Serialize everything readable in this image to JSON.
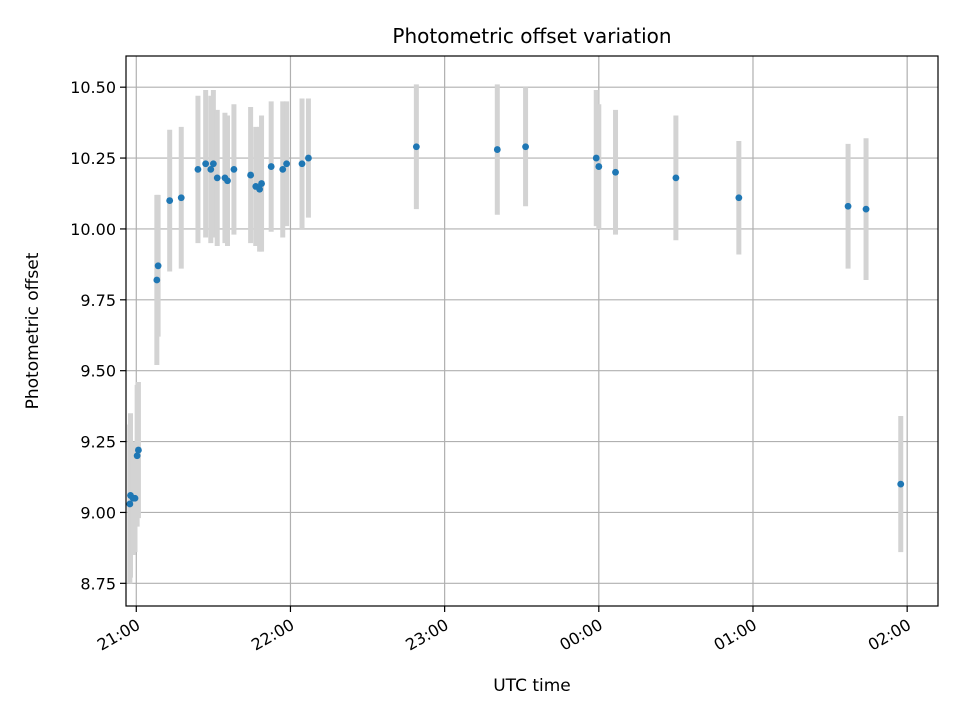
{
  "chart_data": {
    "type": "scatter",
    "title": "Photometric offset variation",
    "xlabel": "UTC time",
    "ylabel": "Photometric offset",
    "x_unit": "time",
    "xlim": [
      "20:56",
      "02:12"
    ],
    "ylim": [
      8.67,
      10.61
    ],
    "x_ticks": [
      "21:00",
      "22:00",
      "23:00",
      "00:00",
      "01:00",
      "02:00"
    ],
    "y_ticks": [
      "8.75",
      "9.00",
      "9.25",
      "9.50",
      "9.75",
      "10.00",
      "10.25",
      "10.50"
    ],
    "grid": true,
    "colors": {
      "points": "#1f77b4",
      "error_bars": "#d3d3d3",
      "grid": "#b0b0b0",
      "axes": "#000000"
    },
    "series": [
      {
        "points": [
          {
            "x": "20:57:30",
            "y": 9.03,
            "err": 0.28
          },
          {
            "x": "20:57:45",
            "y": 9.06,
            "err": 0.29
          },
          {
            "x": "20:58:45",
            "y": 9.05,
            "err": 0.2
          },
          {
            "x": "20:59:30",
            "y": 9.05,
            "err": 0.19
          },
          {
            "x": "21:00:20",
            "y": 9.2,
            "err": 0.25
          },
          {
            "x": "21:00:50",
            "y": 9.22,
            "err": 0.24
          },
          {
            "x": "21:08:00",
            "y": 9.82,
            "err": 0.3
          },
          {
            "x": "21:08:30",
            "y": 9.87,
            "err": 0.25
          },
          {
            "x": "21:13:00",
            "y": 10.1,
            "err": 0.25
          },
          {
            "x": "21:17:30",
            "y": 10.11,
            "err": 0.25
          },
          {
            "x": "21:24:00",
            "y": 10.21,
            "err": 0.26
          },
          {
            "x": "21:27:00",
            "y": 10.23,
            "err": 0.26
          },
          {
            "x": "21:29:00",
            "y": 10.21,
            "err": 0.26
          },
          {
            "x": "21:30:00",
            "y": 10.23,
            "err": 0.26
          },
          {
            "x": "21:31:30",
            "y": 10.18,
            "err": 0.24
          },
          {
            "x": "21:34:30",
            "y": 10.18,
            "err": 0.23
          },
          {
            "x": "21:35:30",
            "y": 10.17,
            "err": 0.23
          },
          {
            "x": "21:38:00",
            "y": 10.21,
            "err": 0.23
          },
          {
            "x": "21:44:30",
            "y": 10.19,
            "err": 0.24
          },
          {
            "x": "21:46:30",
            "y": 10.15,
            "err": 0.21
          },
          {
            "x": "21:48:00",
            "y": 10.14,
            "err": 0.22
          },
          {
            "x": "21:48:45",
            "y": 10.16,
            "err": 0.24
          },
          {
            "x": "21:52:30",
            "y": 10.22,
            "err": 0.23
          },
          {
            "x": "21:57:00",
            "y": 10.21,
            "err": 0.24
          },
          {
            "x": "21:58:30",
            "y": 10.23,
            "err": 0.22
          },
          {
            "x": "22:04:30",
            "y": 10.23,
            "err": 0.23
          },
          {
            "x": "22:07:00",
            "y": 10.25,
            "err": 0.21
          },
          {
            "x": "22:49:00",
            "y": 10.29,
            "err": 0.22
          },
          {
            "x": "23:20:30",
            "y": 10.28,
            "err": 0.23
          },
          {
            "x": "23:31:30",
            "y": 10.29,
            "err": 0.21
          },
          {
            "x": "23:59:00",
            "y": 10.25,
            "err": 0.24
          },
          {
            "x": "00:00:00",
            "y": 10.22,
            "err": 0.22
          },
          {
            "x": "00:06:30",
            "y": 10.2,
            "err": 0.22
          },
          {
            "x": "00:30:00",
            "y": 10.18,
            "err": 0.22
          },
          {
            "x": "00:54:30",
            "y": 10.11,
            "err": 0.2
          },
          {
            "x": "01:37:00",
            "y": 10.08,
            "err": 0.22
          },
          {
            "x": "01:44:00",
            "y": 10.07,
            "err": 0.25
          },
          {
            "x": "01:57:30",
            "y": 9.1,
            "err": 0.24
          }
        ]
      }
    ]
  }
}
